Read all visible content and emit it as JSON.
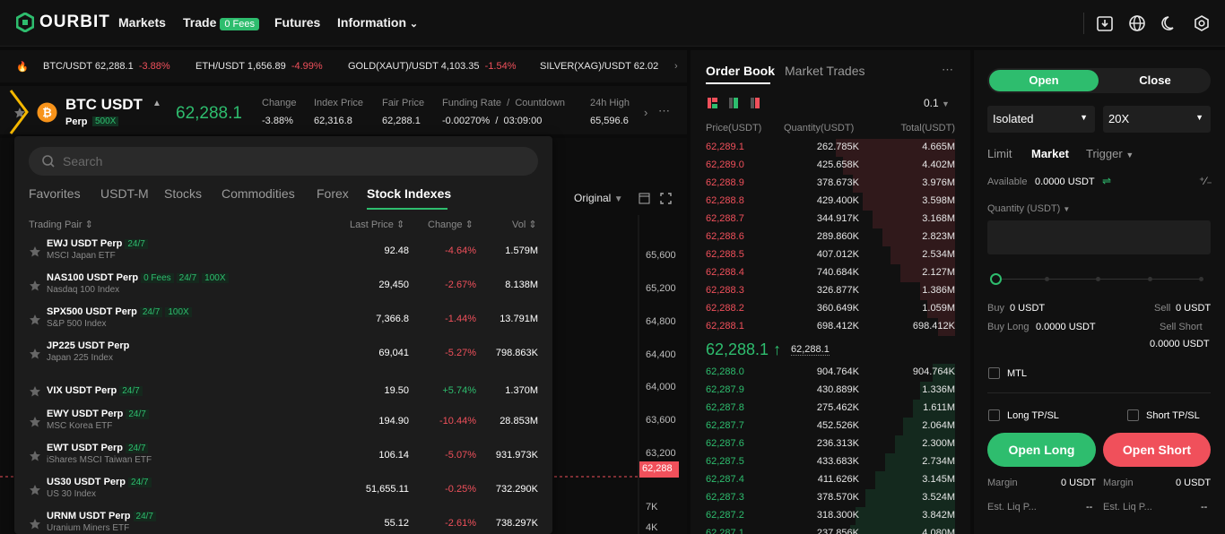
{
  "nav": {
    "brand": "OURBIT",
    "markets": "Markets",
    "trade": "Trade",
    "trade_badge": "0 Fees",
    "futures": "Futures",
    "information": "Information"
  },
  "ticker": {
    "items": [
      {
        "pair": "BTC/USDT",
        "price": "62,288.1",
        "change": "-3.88%"
      },
      {
        "pair": "ETH/USDT",
        "price": "1,656.89",
        "change": "-4.99%"
      },
      {
        "pair": "GOLD(XAUT)/USDT",
        "price": "4,103.35",
        "change": "-1.54%"
      },
      {
        "pair": "SILVER(XAG)/USDT",
        "price": "62.02",
        "change": ""
      }
    ]
  },
  "symbol": {
    "name": "BTC USDT",
    "type": "Perp",
    "leverage": "500X",
    "price": "62,288.1",
    "change_label": "Change",
    "change": "-3.88%",
    "index_label": "Index Price",
    "index": "62,316.8",
    "fair_label": "Fair Price",
    "fair": "62,288.1",
    "funding_label": "Funding Rate  /  Countdown",
    "funding": "-0.00270%  /  03:09:00",
    "high_label": "24h High",
    "high": "65,596.6"
  },
  "chart": {
    "mode": "Original",
    "yaxis": [
      "65,600",
      "65,200",
      "64,800",
      "64,400",
      "64,000",
      "63,600",
      "63,200",
      "7K",
      "4K"
    ],
    "current_price": "62,288"
  },
  "dropdown": {
    "search_placeholder": "Search",
    "tabs": [
      "Favorites",
      "USDT-M",
      "Stocks",
      "Commodities",
      "Forex",
      "Stock Indexes"
    ],
    "active_tab": "Stock Indexes",
    "columns": {
      "pair": "Trading Pair ⇕",
      "last": "Last Price ⇕",
      "change": "Change ⇕",
      "vol": "Vol ⇕"
    },
    "rows": [
      {
        "name": "EWJ USDT Perp",
        "tags": [
          "24/7"
        ],
        "sub": "MSCI Japan ETF",
        "price": "92.48",
        "change": "-4.64%",
        "vol": "1.579M"
      },
      {
        "name": "NAS100 USDT Perp",
        "tags": [
          "0 Fees",
          "24/7",
          "100X"
        ],
        "sub": "Nasdaq 100 Index",
        "price": "29,450",
        "change": "-2.67%",
        "vol": "8.138M"
      },
      {
        "name": "SPX500 USDT Perp",
        "tags": [
          "24/7",
          "100X"
        ],
        "sub": "S&P 500 Index",
        "price": "7,366.8",
        "change": "-1.44%",
        "vol": "13.791M"
      },
      {
        "name": "JP225 USDT Perp",
        "tags": [],
        "sub": "Japan 225 Index",
        "price": "69,041",
        "change": "-5.27%",
        "vol": "798.863K"
      },
      {
        "name": "VIX USDT Perp",
        "tags": [
          "24/7"
        ],
        "sub": "",
        "price": "19.50",
        "change": "+5.74%",
        "vol": "1.370M"
      },
      {
        "name": "EWY USDT Perp",
        "tags": [
          "24/7"
        ],
        "sub": "MSC Korea ETF",
        "price": "194.90",
        "change": "-10.44%",
        "vol": "28.853M"
      },
      {
        "name": "EWT USDT Perp",
        "tags": [
          "24/7"
        ],
        "sub": "iShares MSCI Taiwan ETF",
        "price": "106.14",
        "change": "-5.07%",
        "vol": "931.973K"
      },
      {
        "name": "US30 USDT Perp",
        "tags": [
          "24/7"
        ],
        "sub": "US 30 Index",
        "price": "51,655.11",
        "change": "-0.25%",
        "vol": "732.290K"
      },
      {
        "name": "URNM USDT Perp",
        "tags": [
          "24/7"
        ],
        "sub": "Uranium Miners ETF",
        "price": "55.12",
        "change": "-2.61%",
        "vol": "738.297K"
      }
    ]
  },
  "orderbook": {
    "tab_book": "Order Book",
    "tab_trades": "Market Trades",
    "precision": "0.1",
    "col_price": "Price(USDT)",
    "col_qty": "Quantity(USDT)",
    "col_total": "Total(USDT)",
    "asks": [
      {
        "p": "62,289.1",
        "q": "262.785K",
        "t": "4.665M",
        "d": 0.48
      },
      {
        "p": "62,289.0",
        "q": "425.658K",
        "t": "4.402M",
        "d": 0.45
      },
      {
        "p": "62,288.9",
        "q": "378.673K",
        "t": "3.976M",
        "d": 0.41
      },
      {
        "p": "62,288.8",
        "q": "429.400K",
        "t": "3.598M",
        "d": 0.37
      },
      {
        "p": "62,288.7",
        "q": "344.917K",
        "t": "3.168M",
        "d": 0.33
      },
      {
        "p": "62,288.6",
        "q": "289.860K",
        "t": "2.823M",
        "d": 0.29
      },
      {
        "p": "62,288.5",
        "q": "407.012K",
        "t": "2.534M",
        "d": 0.26
      },
      {
        "p": "62,288.4",
        "q": "740.684K",
        "t": "2.127M",
        "d": 0.22
      },
      {
        "p": "62,288.3",
        "q": "326.877K",
        "t": "1.386M",
        "d": 0.14
      },
      {
        "p": "62,288.2",
        "q": "360.649K",
        "t": "1.059M",
        "d": 0.11
      },
      {
        "p": "62,288.1",
        "q": "698.412K",
        "t": "698.412K",
        "d": 0.07
      }
    ],
    "mid_price": "62,288.1 ↑",
    "mid_sub": "62,288.1",
    "bids": [
      {
        "p": "62,288.0",
        "q": "904.764K",
        "t": "904.764K",
        "d": 0.09
      },
      {
        "p": "62,287.9",
        "q": "430.889K",
        "t": "1.336M",
        "d": 0.14
      },
      {
        "p": "62,287.8",
        "q": "275.462K",
        "t": "1.611M",
        "d": 0.17
      },
      {
        "p": "62,287.7",
        "q": "452.526K",
        "t": "2.064M",
        "d": 0.21
      },
      {
        "p": "62,287.6",
        "q": "236.313K",
        "t": "2.300M",
        "d": 0.24
      },
      {
        "p": "62,287.5",
        "q": "433.683K",
        "t": "2.734M",
        "d": 0.28
      },
      {
        "p": "62,287.4",
        "q": "411.626K",
        "t": "3.145M",
        "d": 0.32
      },
      {
        "p": "62,287.3",
        "q": "378.570K",
        "t": "3.524M",
        "d": 0.36
      },
      {
        "p": "62,287.2",
        "q": "318.300K",
        "t": "3.842M",
        "d": 0.4
      },
      {
        "p": "62,287.1",
        "q": "237.856K",
        "t": "4.080M",
        "d": 0.42
      }
    ]
  },
  "trade": {
    "open": "Open",
    "close": "Close",
    "margin_mode": "Isolated",
    "leverage": "20X",
    "order_types": [
      "Limit",
      "Market",
      "Trigger"
    ],
    "available_label": "Available",
    "available": "0.0000 USDT",
    "qty_label": "Quantity (USDT)",
    "buy_label": "Buy",
    "buy": "0 USDT",
    "sell_label": "Sell",
    "sell": "0 USDT",
    "buy_long_label": "Buy Long",
    "buy_long": "0.0000 USDT",
    "sell_short_label": "Sell Short",
    "sell_short": "0.0000 USDT",
    "mtl": "MTL",
    "long_tpsl": "Long TP/SL",
    "short_tpsl": "Short TP/SL",
    "open_long": "Open Long",
    "open_short": "Open Short",
    "margin_label": "Margin",
    "margin_long": "0 USDT",
    "margin_short": "0 USDT",
    "liq_label": "Est. Liq P...",
    "liq_long": "--",
    "liq_short": "--"
  },
  "colors": {
    "up": "#2ebd6e",
    "down": "#f0505b",
    "bg": "#0b0b0b",
    "panel": "#111111",
    "highlight": "#f5b800"
  }
}
